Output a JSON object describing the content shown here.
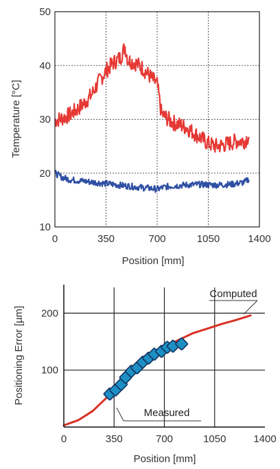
{
  "colors": {
    "series_red": "#e53935",
    "series_blue": "#2e4fa3",
    "marker_fill": "#1c8fc4",
    "marker_stroke": "#12325e",
    "computed_red": "#d93025"
  },
  "chart_data": [
    {
      "type": "line",
      "title": "",
      "xlabel": "Position [mm]",
      "ylabel": "Temperature [°C]",
      "xlim": [
        0,
        1400
      ],
      "ylim": [
        10,
        50
      ],
      "xticks": [
        "0",
        "350",
        "700",
        "1050",
        "1400"
      ],
      "yticks": [
        "10",
        "20",
        "30",
        "40",
        "50"
      ],
      "grid": true,
      "series": [
        {
          "x": [
            0,
            50,
            100,
            150,
            200,
            250,
            300,
            350,
            400,
            450,
            480,
            500,
            550,
            600,
            650,
            700,
            730,
            800,
            900,
            1000,
            1050,
            1100,
            1150,
            1200,
            1250,
            1300,
            1330
          ],
          "values": [
            29.8,
            30.2,
            30.8,
            31.8,
            33.0,
            34.5,
            37.0,
            39.0,
            40.5,
            41.5,
            43.5,
            41.0,
            40.5,
            39.5,
            38.0,
            36.5,
            31.0,
            29.5,
            28.5,
            26.5,
            25.5,
            25.0,
            25.2,
            25.6,
            26.0,
            26.0,
            27.0
          ]
        },
        {
          "x": [
            0,
            50,
            100,
            200,
            300,
            400,
            500,
            600,
            650,
            700,
            750,
            800,
            900,
            1000,
            1100,
            1200,
            1300,
            1330
          ],
          "values": [
            20.0,
            19.2,
            18.8,
            18.5,
            18.2,
            17.9,
            17.6,
            17.3,
            17.2,
            17.0,
            17.4,
            17.6,
            17.8,
            17.9,
            17.8,
            17.9,
            18.3,
            19.0
          ]
        }
      ]
    },
    {
      "type": "line",
      "title": "",
      "xlabel": "Position [mm]",
      "ylabel": "Positioning Error [µm]",
      "xlim": [
        0,
        1400
      ],
      "ylim": [
        0,
        250
      ],
      "xticks": [
        "0",
        "350",
        "700",
        "1050",
        "1400"
      ],
      "yticks": [
        "100",
        "200"
      ],
      "grid": true,
      "series": [
        {
          "name": "Computed",
          "x": [
            0,
            100,
            200,
            300,
            400,
            500,
            600,
            700,
            800,
            900,
            1000,
            1100,
            1200,
            1300
          ],
          "values": [
            3,
            12,
            28,
            52,
            80,
            105,
            125,
            140,
            153,
            165,
            173,
            181,
            188,
            196
          ]
        },
        {
          "name": "Measured",
          "x": [
            320,
            360,
            400,
            430,
            470,
            510,
            550,
            590,
            630,
            680,
            720,
            760,
            820
          ],
          "values": [
            58,
            65,
            75,
            87,
            98,
            104,
            114,
            121,
            128,
            133,
            140,
            142,
            146
          ]
        }
      ],
      "annotations": [
        "Computed",
        "Measured"
      ]
    }
  ]
}
